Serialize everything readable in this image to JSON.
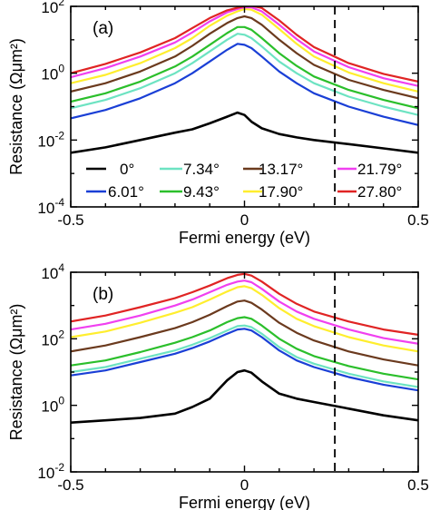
{
  "chart_data": [
    {
      "type": "line",
      "panel_label": "(a)",
      "xlabel": "Fermi energy (eV)",
      "ylabel": "Resistance (Ωμm²)",
      "xlim": [
        -0.5,
        0.5
      ],
      "ylim_log10": [
        -4,
        2
      ],
      "yscale": "log",
      "xticks": [
        {
          "v": -0.5,
          "label": "-0.5"
        },
        {
          "v": 0,
          "label": "0"
        },
        {
          "v": 0.5,
          "label": "0.5"
        }
      ],
      "yticks": [
        {
          "exp": -4,
          "base": "10",
          "sup": "-4"
        },
        {
          "exp": -2,
          "base": "10",
          "sup": "-2"
        },
        {
          "exp": 0,
          "base": "10",
          "sup": "0"
        },
        {
          "exp": 2,
          "base": "10",
          "sup": "2"
        }
      ],
      "vline_x": 0.26,
      "legend_position": "bottom",
      "x": [
        -0.5,
        -0.4,
        -0.3,
        -0.2,
        -0.15,
        -0.1,
        -0.05,
        -0.02,
        0,
        0.02,
        0.05,
        0.1,
        0.15,
        0.2,
        0.3,
        0.4,
        0.5
      ],
      "series": [
        {
          "name": "0°",
          "color": "#000000",
          "log10": [
            -2.38,
            -2.22,
            -2.0,
            -1.78,
            -1.68,
            -1.5,
            -1.3,
            -1.18,
            -1.25,
            -1.45,
            -1.65,
            -1.82,
            -1.92,
            -2.0,
            -2.12,
            -2.25,
            -2.38
          ]
        },
        {
          "name": "6.01°",
          "color": "#1a3fd6",
          "log10": [
            -1.35,
            -1.1,
            -0.75,
            -0.3,
            0.0,
            0.35,
            0.7,
            0.88,
            0.85,
            0.75,
            0.5,
            0.05,
            -0.3,
            -0.6,
            -1.0,
            -1.3,
            -1.55
          ]
        },
        {
          "name": "7.34°",
          "color": "#6de3c2",
          "log10": [
            -1.05,
            -0.8,
            -0.45,
            0.0,
            0.3,
            0.65,
            1.0,
            1.18,
            1.15,
            1.05,
            0.8,
            0.35,
            0.0,
            -0.3,
            -0.7,
            -1.0,
            -1.25
          ]
        },
        {
          "name": "9.43°",
          "color": "#2bbf2b",
          "log10": [
            -0.85,
            -0.6,
            -0.25,
            0.2,
            0.5,
            0.85,
            1.2,
            1.38,
            1.38,
            1.3,
            1.05,
            0.6,
            0.22,
            -0.1,
            -0.5,
            -0.8,
            -1.05
          ]
        },
        {
          "name": "13.17°",
          "color": "#6b3a1e",
          "log10": [
            -0.55,
            -0.3,
            0.05,
            0.5,
            0.82,
            1.18,
            1.5,
            1.65,
            1.7,
            1.65,
            1.45,
            1.0,
            0.6,
            0.25,
            -0.2,
            -0.5,
            -0.75
          ]
        },
        {
          "name": "17.90°",
          "color": "#ffee2e",
          "log10": [
            -0.3,
            -0.05,
            0.3,
            0.75,
            1.05,
            1.42,
            1.72,
            1.85,
            1.92,
            1.9,
            1.75,
            1.32,
            0.88,
            0.5,
            0.02,
            -0.3,
            -0.55
          ]
        },
        {
          "name": "21.79°",
          "color": "#f040f0",
          "log10": [
            -0.12,
            0.15,
            0.5,
            0.92,
            1.22,
            1.55,
            1.82,
            1.92,
            1.97,
            1.97,
            1.85,
            1.45,
            1.02,
            0.65,
            0.18,
            -0.15,
            -0.38
          ]
        },
        {
          "name": "27.80°",
          "color": "#e02424",
          "log10": [
            0.0,
            0.28,
            0.62,
            1.05,
            1.35,
            1.65,
            1.88,
            1.96,
            2.0,
            2.02,
            1.95,
            1.58,
            1.15,
            0.78,
            0.3,
            -0.02,
            -0.25
          ]
        }
      ]
    },
    {
      "type": "line",
      "panel_label": "(b)",
      "xlabel": "Fermi energy (eV)",
      "ylabel": "Resistance (Ωμm²)",
      "xlim": [
        -0.5,
        0.5
      ],
      "ylim_log10": [
        -2,
        4
      ],
      "yscale": "log",
      "xticks": [
        {
          "v": -0.5,
          "label": "-0.5"
        },
        {
          "v": 0,
          "label": "0"
        },
        {
          "v": 0.5,
          "label": "0.5"
        }
      ],
      "yticks": [
        {
          "exp": -2,
          "base": "10",
          "sup": "-2"
        },
        {
          "exp": 0,
          "base": "10",
          "sup": "0"
        },
        {
          "exp": 2,
          "base": "10",
          "sup": "2"
        },
        {
          "exp": 4,
          "base": "10",
          "sup": "4"
        }
      ],
      "vline_x": 0.26,
      "x": [
        -0.5,
        -0.4,
        -0.3,
        -0.2,
        -0.15,
        -0.1,
        -0.05,
        -0.02,
        0,
        0.02,
        0.05,
        0.1,
        0.15,
        0.2,
        0.3,
        0.4,
        0.5
      ],
      "series": [
        {
          "name": "0°",
          "color": "#000000",
          "log10": [
            -0.52,
            -0.45,
            -0.38,
            -0.25,
            -0.05,
            0.2,
            0.75,
            1.0,
            1.05,
            0.98,
            0.72,
            0.35,
            0.2,
            0.1,
            -0.1,
            -0.3,
            -0.45
          ]
        },
        {
          "name": "6.01°",
          "color": "#1a3fd6",
          "log10": [
            0.9,
            1.05,
            1.3,
            1.55,
            1.72,
            1.92,
            2.15,
            2.28,
            2.3,
            2.25,
            2.05,
            1.65,
            1.35,
            1.15,
            0.85,
            0.62,
            0.45
          ]
        },
        {
          "name": "7.34°",
          "color": "#6de3c2",
          "log10": [
            1.0,
            1.15,
            1.4,
            1.65,
            1.82,
            2.02,
            2.25,
            2.38,
            2.4,
            2.35,
            2.15,
            1.75,
            1.45,
            1.25,
            0.95,
            0.72,
            0.55
          ]
        },
        {
          "name": "9.43°",
          "color": "#2bbf2b",
          "log10": [
            1.2,
            1.35,
            1.6,
            1.88,
            2.05,
            2.25,
            2.5,
            2.62,
            2.65,
            2.6,
            2.4,
            2.0,
            1.7,
            1.48,
            1.18,
            0.95,
            0.78
          ]
        },
        {
          "name": "13.17°",
          "color": "#6b3a1e",
          "log10": [
            1.62,
            1.8,
            2.05,
            2.32,
            2.5,
            2.72,
            2.98,
            3.12,
            3.15,
            3.08,
            2.88,
            2.48,
            2.18,
            1.95,
            1.62,
            1.38,
            1.2
          ]
        },
        {
          "name": "17.90°",
          "color": "#ffee2e",
          "log10": [
            2.05,
            2.22,
            2.48,
            2.78,
            2.95,
            3.18,
            3.42,
            3.55,
            3.58,
            3.52,
            3.32,
            2.92,
            2.6,
            2.38,
            2.05,
            1.8,
            1.62
          ]
        },
        {
          "name": "21.79°",
          "color": "#f040f0",
          "log10": [
            2.28,
            2.45,
            2.7,
            3.0,
            3.18,
            3.4,
            3.62,
            3.72,
            3.75,
            3.7,
            3.5,
            3.12,
            2.82,
            2.6,
            2.28,
            2.02,
            1.85
          ]
        },
        {
          "name": "27.80°",
          "color": "#e02424",
          "log10": [
            2.52,
            2.7,
            2.95,
            3.22,
            3.4,
            3.6,
            3.82,
            3.92,
            3.95,
            3.9,
            3.72,
            3.35,
            3.05,
            2.82,
            2.52,
            2.28,
            2.12
          ]
        }
      ]
    }
  ]
}
